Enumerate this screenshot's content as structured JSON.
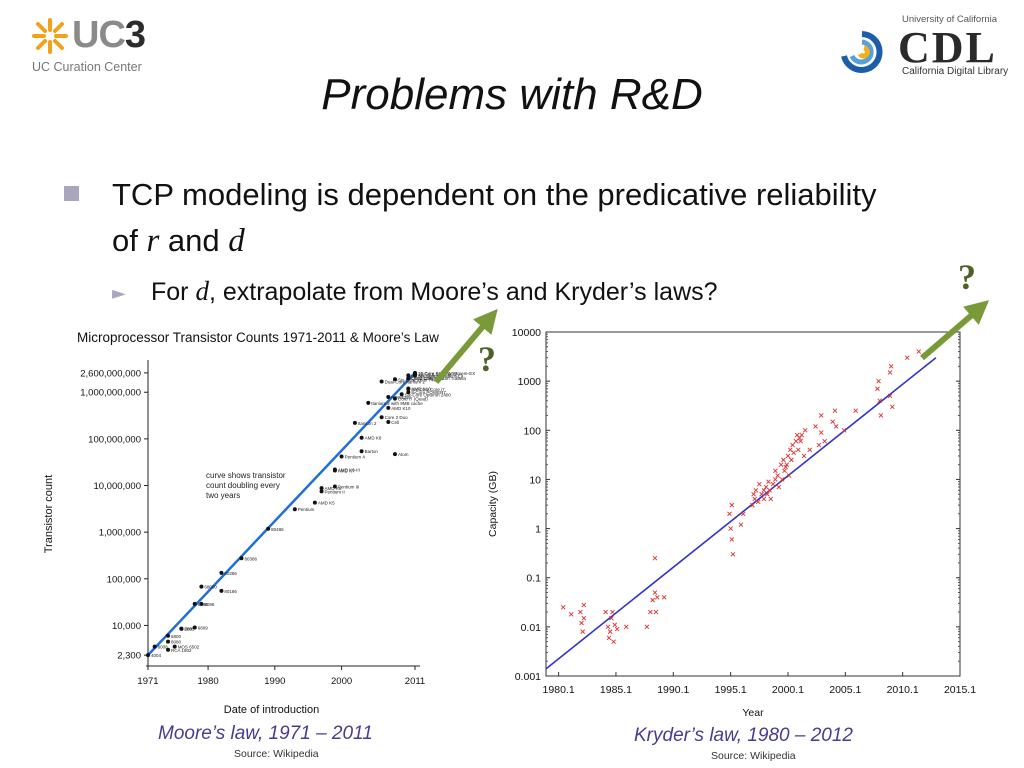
{
  "header": {
    "uc3_logo_text": "UC3",
    "uc3_subtitle": "UC Curation Center",
    "cdl_top_text": "University of California",
    "cdl_logo_text": "CDL",
    "cdl_subtitle": "California Digital Library"
  },
  "slide": {
    "title": "Problems with R&D",
    "bullet1_pre": "TCP modeling is dependent on the predicative reliability of ",
    "bullet1_var_r": "r",
    "bullet1_mid": " and ",
    "bullet1_var_d": "d",
    "bullet2_marker": "►",
    "bullet2_pre": "For ",
    "bullet2_var": "d",
    "bullet2_post": ", extrapolate from Moore’s and Kryder’s laws?",
    "question_mark_1": "?",
    "question_mark_2": "?",
    "accent_color": "#7a9a3a",
    "title_color": "#111111",
    "caption_color": "#4a3b8f"
  },
  "captions": {
    "moore_caption": "Moore’s law, 1971 – 2011",
    "moore_source": "Source: Wikipedia",
    "kryder_caption": "Kryder’s law, 1980 – 2012",
    "kryder_source": "Source: Wikipedia"
  },
  "chart_data": [
    {
      "type": "scatter",
      "title": "Microprocessor Transistor Counts 1971-2011 & Moore’s Law",
      "xlabel": "Date of introduction",
      "ylabel": "Transistor count",
      "x_ticks": [
        1971,
        1980,
        1990,
        2000,
        2011
      ],
      "y_ticks": [
        "2,300",
        "10,000",
        "100,000",
        "1,000,000",
        "10,000,000",
        "100,000,000",
        "1,000,000,000",
        "2,600,000,000"
      ],
      "y_tick_values": [
        2300,
        10000,
        100000,
        1000000,
        10000000,
        100000000,
        1000000000,
        2600000000
      ],
      "xlim": [
        1971,
        2011
      ],
      "ylim": [
        2000,
        3000000000
      ],
      "log_y": true,
      "annotation": "curve shows transistor count doubling every two years",
      "trend_line": {
        "color": "#1f6fd6",
        "x": [
          1971,
          2011
        ],
        "y": [
          2300,
          2600000000
        ]
      },
      "points": [
        {
          "x": 1971,
          "y": 2300,
          "label": "4004"
        },
        {
          "x": 1972,
          "y": 3500,
          "label": "8008"
        },
        {
          "x": 1974,
          "y": 4500,
          "label": "8080"
        },
        {
          "x": 1974,
          "y": 6000,
          "label": "6800"
        },
        {
          "x": 1976,
          "y": 8500,
          "label": "8085"
        },
        {
          "x": 1974,
          "y": 3000,
          "label": "RCA 1802"
        },
        {
          "x": 1975,
          "y": 3510,
          "label": "MOS 6502"
        },
        {
          "x": 1976,
          "y": 8500,
          "label": "Z80"
        },
        {
          "x": 1978,
          "y": 9000,
          "label": "6809"
        },
        {
          "x": 1978,
          "y": 29000,
          "label": "8086"
        },
        {
          "x": 1979,
          "y": 29000,
          "label": "8088"
        },
        {
          "x": 1979,
          "y": 68000,
          "label": "68000"
        },
        {
          "x": 1982,
          "y": 55000,
          "label": "80186"
        },
        {
          "x": 1982,
          "y": 134000,
          "label": "80286"
        },
        {
          "x": 1985,
          "y": 275000,
          "label": "80386"
        },
        {
          "x": 1989,
          "y": 1180000,
          "label": "80486"
        },
        {
          "x": 1993,
          "y": 3100000,
          "label": "Pentium"
        },
        {
          "x": 1996,
          "y": 4300000,
          "label": "AMD K5"
        },
        {
          "x": 1997,
          "y": 7500000,
          "label": "Pentium II"
        },
        {
          "x": 1999,
          "y": 9500000,
          "label": "Pentium III"
        },
        {
          "x": 1999,
          "y": 22000000,
          "label": "AMD K6-III"
        },
        {
          "x": 1999,
          "y": 21000000,
          "label": "AMD K7"
        },
        {
          "x": 1997,
          "y": 8800000,
          "label": "AMD K6"
        },
        {
          "x": 2000,
          "y": 42000000,
          "label": "Pentium 4"
        },
        {
          "x": 2003,
          "y": 54300000,
          "label": "Barton"
        },
        {
          "x": 2003,
          "y": 105900000,
          "label": "AMD K8"
        },
        {
          "x": 2008,
          "y": 47000000,
          "label": "Atom"
        },
        {
          "x": 2002,
          "y": 220000000,
          "label": "Itanium 2"
        },
        {
          "x": 2006,
          "y": 291000000,
          "label": "Core 2 Duo"
        },
        {
          "x": 2007,
          "y": 230000000,
          "label": "Cell"
        },
        {
          "x": 2008,
          "y": 731000000,
          "label": "Core i7 (Quad)"
        },
        {
          "x": 2009,
          "y": 904000000,
          "label": "Six-Core Opteron 2400"
        },
        {
          "x": 2004,
          "y": 592000000,
          "label": "Itanium 2 with 9MB cache"
        },
        {
          "x": 2007,
          "y": 789000000,
          "label": "POWER6"
        },
        {
          "x": 2007,
          "y": 463000000,
          "label": "AMD K10"
        },
        {
          "x": 2006,
          "y": 1700000000,
          "label": "Dual-Core Itanium 2"
        },
        {
          "x": 2008,
          "y": 1900000000,
          "label": "Six-Core Xeon 7400"
        },
        {
          "x": 2010,
          "y": 1200000000,
          "label": "AMD K10"
        },
        {
          "x": 2010,
          "y": 1000000000,
          "label": "8-Core POWER7"
        },
        {
          "x": 2010,
          "y": 2000000000,
          "label": "Quad-core z196"
        },
        {
          "x": 2010,
          "y": 1170000000,
          "label": "Six-Core Core i7"
        },
        {
          "x": 2011,
          "y": 2270000000,
          "label": "Six-Core Core i7"
        },
        {
          "x": 2010,
          "y": 2300000000,
          "label": "8-Core Xeon Nehalem-EX"
        },
        {
          "x": 2011,
          "y": 2600000000,
          "label": "10-Core Xeon Westmere-EX"
        },
        {
          "x": 2011,
          "y": 2500000000,
          "label": "16-Core SPARC T3"
        },
        {
          "x": 2010,
          "y": 2000000000,
          "label": "Quad-Core Itanium Tukwila"
        }
      ]
    },
    {
      "type": "scatter",
      "title": "",
      "xlabel": "Year",
      "ylabel": "Capacity (GB)",
      "x_ticks": [
        "1980.1",
        "1985.1",
        "1990.1",
        "1995.1",
        "2000.1",
        "2005.1",
        "2010.1",
        "2015.1"
      ],
      "x_tick_values": [
        1980.1,
        1985.1,
        1990.1,
        1995.1,
        2000.1,
        2005.1,
        2010.1,
        2015.1
      ],
      "y_ticks": [
        "0.001",
        "0.01",
        "0.1",
        "1",
        "10",
        "100",
        "1000",
        "10000"
      ],
      "y_tick_values": [
        0.001,
        0.01,
        0.1,
        1,
        10,
        100,
        1000,
        10000
      ],
      "xlim": [
        1979,
        2015.1
      ],
      "ylim": [
        0.001,
        10000
      ],
      "log_y": true,
      "trend_line": {
        "color": "#3333cc",
        "x": [
          1979,
          2013
        ],
        "y": [
          0.0014,
          3000
        ]
      },
      "series": [
        {
          "marker_color": "#e03030",
          "points": [
            [
              1980.5,
              0.025
            ],
            [
              1981.2,
              0.018
            ],
            [
              1982.0,
              0.02
            ],
            [
              1982.1,
              0.012
            ],
            [
              1982.2,
              0.008
            ],
            [
              1982.3,
              0.028
            ],
            [
              1982.3,
              0.015
            ],
            [
              1984.2,
              0.02
            ],
            [
              1984.4,
              0.01
            ],
            [
              1984.5,
              0.006
            ],
            [
              1984.6,
              0.008
            ],
            [
              1984.7,
              0.015
            ],
            [
              1984.8,
              0.02
            ],
            [
              1984.9,
              0.005
            ],
            [
              1985.0,
              0.011
            ],
            [
              1985.2,
              0.009
            ],
            [
              1986.0,
              0.01
            ],
            [
              1987.8,
              0.01
            ],
            [
              1988.1,
              0.02
            ],
            [
              1988.3,
              0.035
            ],
            [
              1988.5,
              0.05
            ],
            [
              1988.5,
              0.25
            ],
            [
              1988.7,
              0.04
            ],
            [
              1988.6,
              0.02
            ],
            [
              1989.3,
              0.04
            ],
            [
              1995.0,
              2
            ],
            [
              1995.1,
              1
            ],
            [
              1995.2,
              3
            ],
            [
              1995.2,
              0.6
            ],
            [
              1995.3,
              0.3
            ],
            [
              1996.0,
              1.2
            ],
            [
              1996.2,
              2
            ],
            [
              1997.0,
              3
            ],
            [
              1997.1,
              5
            ],
            [
              1997.2,
              4
            ],
            [
              1997.3,
              6
            ],
            [
              1997.5,
              3.5
            ],
            [
              1997.6,
              8
            ],
            [
              1997.8,
              5
            ],
            [
              1998.0,
              4
            ],
            [
              1998.0,
              6
            ],
            [
              1998.2,
              7
            ],
            [
              1998.3,
              5
            ],
            [
              1998.4,
              9
            ],
            [
              1998.5,
              6
            ],
            [
              1998.6,
              4
            ],
            [
              1998.8,
              8
            ],
            [
              1999.0,
              10
            ],
            [
              1999.0,
              15
            ],
            [
              1999.2,
              12
            ],
            [
              1999.3,
              7
            ],
            [
              1999.5,
              20
            ],
            [
              1999.6,
              10
            ],
            [
              1999.7,
              25
            ],
            [
              1999.8,
              15
            ],
            [
              1999.9,
              18
            ],
            [
              2000.0,
              20
            ],
            [
              2000.1,
              30
            ],
            [
              2000.2,
              12
            ],
            [
              2000.3,
              40
            ],
            [
              2000.4,
              25
            ],
            [
              2000.5,
              50
            ],
            [
              2000.6,
              35
            ],
            [
              2000.8,
              60
            ],
            [
              2000.9,
              80
            ],
            [
              2001.0,
              40
            ],
            [
              2001.1,
              70
            ],
            [
              2001.2,
              60
            ],
            [
              2001.3,
              80
            ],
            [
              2001.5,
              30
            ],
            [
              2001.6,
              100
            ],
            [
              2002.0,
              40
            ],
            [
              2002.5,
              120
            ],
            [
              2002.8,
              50
            ],
            [
              2003.0,
              200
            ],
            [
              2003.0,
              90
            ],
            [
              2003.3,
              60
            ],
            [
              2004.0,
              150
            ],
            [
              2004.2,
              250
            ],
            [
              2004.3,
              120
            ],
            [
              2005.0,
              100
            ],
            [
              2006.0,
              250
            ],
            [
              2007.9,
              700
            ],
            [
              2008.0,
              1000
            ],
            [
              2008.1,
              400
            ],
            [
              2008.2,
              200
            ],
            [
              2009.0,
              500
            ],
            [
              2009.0,
              1500
            ],
            [
              2009.1,
              2000
            ],
            [
              2009.2,
              300
            ],
            [
              2010.5,
              3000
            ],
            [
              2011.5,
              4000
            ]
          ]
        }
      ]
    }
  ]
}
